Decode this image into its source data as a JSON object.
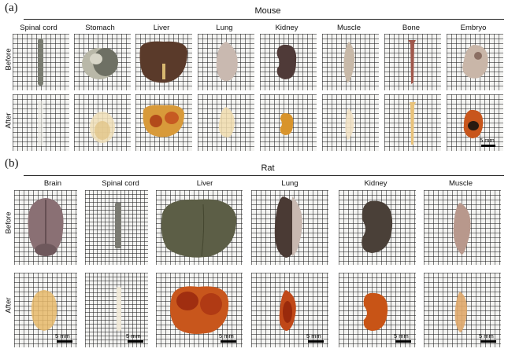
{
  "panel_a": {
    "letter": "(a)",
    "title": "Mouse",
    "columns": [
      "Spinal cord",
      "Stomach",
      "Liver",
      "Lung",
      "Kidney",
      "Muscle",
      "Bone",
      "Embryo"
    ],
    "rows": [
      "Before",
      "After"
    ],
    "scale_label": "5 mm"
  },
  "panel_b": {
    "letter": "(b)",
    "title": "Rat",
    "columns": [
      "Brain",
      "Spinal cord",
      "Liver",
      "Lung",
      "Kidney",
      "Muscle"
    ],
    "rows": [
      "Before",
      "After"
    ],
    "scale_label": "5 mm"
  }
}
